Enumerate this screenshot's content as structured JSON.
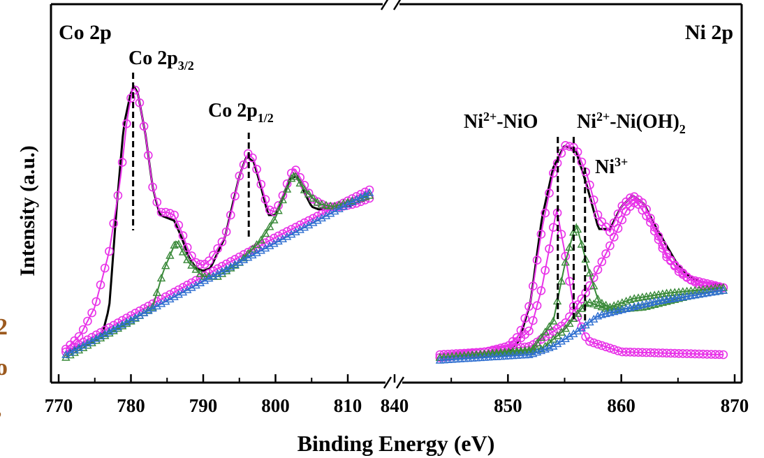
{
  "chart_data": {
    "type": "scatter",
    "title": "",
    "xlabel": "Binding Energy (eV)",
    "ylabel": "Intensity (a.u.)",
    "x_ticks_left": [
      "770",
      "780",
      "790",
      "800",
      "810"
    ],
    "x_ticks_right": [
      "840",
      "850",
      "860",
      "870"
    ],
    "panels": [
      {
        "name": "Co 2p",
        "xlim": [
          771,
          813
        ],
        "annotations": [
          {
            "text": "Co 2p",
            "sub": "3/2",
            "x": 780.3
          },
          {
            "text": "Co 2p",
            "sub": "1/2",
            "x": 796.3
          }
        ],
        "series": [
          {
            "color": "#000000",
            "points": [
              [
                771,
                0.04
              ],
              [
                774,
                0.07
              ],
              [
                776,
                0.1
              ],
              [
                777,
                0.2
              ],
              [
                778,
                0.55
              ],
              [
                779,
                0.85
              ],
              [
                780,
                0.97
              ],
              [
                780.5,
                0.99
              ],
              [
                781,
                0.96
              ],
              [
                782,
                0.82
              ],
              [
                783,
                0.63
              ],
              [
                784,
                0.53
              ],
              [
                785,
                0.52
              ],
              [
                786,
                0.51
              ],
              [
                787,
                0.45
              ],
              [
                788,
                0.38
              ],
              [
                789,
                0.34
              ],
              [
                790,
                0.33
              ],
              [
                791,
                0.34
              ],
              [
                793,
                0.45
              ],
              [
                795,
                0.67
              ],
              [
                796,
                0.74
              ],
              [
                797,
                0.72
              ],
              [
                798,
                0.63
              ],
              [
                799,
                0.53
              ],
              [
                800,
                0.53
              ],
              [
                801,
                0.59
              ],
              [
                802,
                0.66
              ],
              [
                803,
                0.67
              ],
              [
                804,
                0.61
              ],
              [
                805,
                0.56
              ],
              [
                806,
                0.55
              ],
              [
                808,
                0.56
              ],
              [
                810,
                0.56
              ],
              [
                812,
                0.58
              ],
              [
                813,
                0.59
              ]
            ]
          },
          {
            "color": "#e832e8",
            "points": [
              [
                771,
                0.05
              ],
              [
                773,
                0.1
              ],
              [
                775,
                0.2
              ],
              [
                777,
                0.4
              ],
              [
                778.5,
                0.65
              ],
              [
                779.5,
                0.88
              ],
              [
                780.3,
                0.99
              ],
              [
                781,
                0.96
              ],
              [
                782,
                0.82
              ],
              [
                783,
                0.63
              ],
              [
                784,
                0.54
              ],
              [
                785,
                0.54
              ],
              [
                786,
                0.53
              ],
              [
                787,
                0.47
              ],
              [
                788,
                0.4
              ],
              [
                789,
                0.36
              ],
              [
                790,
                0.35
              ],
              [
                791,
                0.37
              ],
              [
                793,
                0.45
              ],
              [
                794,
                0.55
              ],
              [
                795,
                0.67
              ],
              [
                796.2,
                0.75
              ],
              [
                797,
                0.73
              ],
              [
                798,
                0.64
              ],
              [
                799,
                0.55
              ],
              [
                800,
                0.54
              ],
              [
                801,
                0.6
              ],
              [
                802,
                0.67
              ],
              [
                802.6,
                0.7
              ],
              [
                803.5,
                0.66
              ],
              [
                805,
                0.59
              ],
              [
                807,
                0.56
              ],
              [
                809,
                0.56
              ],
              [
                811,
                0.57
              ],
              [
                813,
                0.59
              ]
            ]
          },
          {
            "color": "#e832e8",
            "points": [
              [
                771,
                0.04
              ],
              [
                780,
                0.17
              ],
              [
                790,
                0.31
              ],
              [
                800,
                0.45
              ],
              [
                813,
                0.62
              ]
            ]
          },
          {
            "color": "#3a8a3a",
            "points": [
              [
                771,
                0.02
              ],
              [
                780,
                0.15
              ],
              [
                783,
                0.2
              ],
              [
                784.5,
                0.33
              ],
              [
                786.3,
                0.44
              ],
              [
                788,
                0.36
              ],
              [
                790,
                0.31
              ],
              [
                792,
                0.31
              ],
              [
                795,
                0.36
              ],
              [
                798,
                0.44
              ],
              [
                800,
                0.52
              ],
              [
                802.5,
                0.68
              ],
              [
                804,
                0.62
              ],
              [
                806,
                0.57
              ],
              [
                808,
                0.56
              ],
              [
                813,
                0.6
              ]
            ]
          },
          {
            "color": "#2f6fd0",
            "points": [
              [
                771,
                0.03
              ],
              [
                813,
                0.61
              ]
            ]
          }
        ]
      },
      {
        "name": "Ni 2p",
        "xlim": [
          844,
          869
        ],
        "annotations": [
          {
            "text": "Ni",
            "sup": "2+",
            "tail": "-NiO",
            "x": 854.4
          },
          {
            "text": "Ni",
            "sup": "2+",
            "tail": "-Ni(OH)",
            "sub": "2",
            "x": 855.8
          },
          {
            "text": "Ni",
            "sup": "3+",
            "tail": "",
            "x": 856.8
          }
        ],
        "series": [
          {
            "color": "#000000",
            "points": [
              [
                844,
                0.02
              ],
              [
                848,
                0.03
              ],
              [
                850,
                0.04
              ],
              [
                851,
                0.08
              ],
              [
                852,
                0.22
              ],
              [
                853,
                0.52
              ],
              [
                854,
                0.7
              ],
              [
                855,
                0.78
              ],
              [
                856,
                0.76
              ],
              [
                857,
                0.63
              ],
              [
                858,
                0.48
              ],
              [
                859,
                0.48
              ],
              [
                860,
                0.56
              ],
              [
                861,
                0.6
              ],
              [
                862,
                0.57
              ],
              [
                863,
                0.49
              ],
              [
                864,
                0.42
              ],
              [
                865,
                0.35
              ],
              [
                866,
                0.31
              ],
              [
                867,
                0.29
              ],
              [
                869,
                0.28
              ]
            ]
          },
          {
            "color": "#e832e8",
            "points": [
              [
                844,
                0.03
              ],
              [
                848,
                0.04
              ],
              [
                850,
                0.06
              ],
              [
                851,
                0.1
              ],
              [
                852,
                0.22
              ],
              [
                853,
                0.48
              ],
              [
                854,
                0.68
              ],
              [
                855,
                0.78
              ],
              [
                856,
                0.77
              ],
              [
                857,
                0.67
              ],
              [
                858,
                0.52
              ],
              [
                859,
                0.47
              ],
              [
                860,
                0.56
              ],
              [
                861,
                0.6
              ],
              [
                862,
                0.57
              ],
              [
                863,
                0.48
              ],
              [
                864,
                0.39
              ],
              [
                865,
                0.33
              ],
              [
                866,
                0.3
              ],
              [
                867,
                0.28
              ],
              [
                869,
                0.27
              ]
            ]
          },
          {
            "color": "#e832e8",
            "points": [
              [
                844,
                0.02
              ],
              [
                850,
                0.05
              ],
              [
                852,
                0.12
              ],
              [
                853,
                0.27
              ],
              [
                853.6,
                0.4
              ],
              [
                854.3,
                0.55
              ],
              [
                855,
                0.4
              ],
              [
                855.8,
                0.2
              ],
              [
                857,
                0.08
              ],
              [
                860,
                0.04
              ],
              [
                869,
                0.03
              ]
            ]
          },
          {
            "color": "#e832e8",
            "points": [
              [
                844,
                0.02
              ],
              [
                852,
                0.06
              ],
              [
                855,
                0.14
              ],
              [
                857,
                0.26
              ],
              [
                859,
                0.42
              ],
              [
                860.5,
                0.55
              ],
              [
                861.3,
                0.58
              ],
              [
                862.5,
                0.51
              ],
              [
                864,
                0.38
              ],
              [
                866,
                0.3
              ],
              [
                869,
                0.27
              ]
            ]
          },
          {
            "color": "#3a8a3a",
            "points": [
              [
                844,
                0.02
              ],
              [
                852,
                0.04
              ],
              [
                854,
                0.15
              ],
              [
                855,
                0.35
              ],
              [
                856,
                0.5
              ],
              [
                857,
                0.35
              ],
              [
                858,
                0.22
              ],
              [
                859,
                0.2
              ],
              [
                861,
                0.23
              ],
              [
                864,
                0.25
              ],
              [
                869,
                0.27
              ]
            ]
          },
          {
            "color": "#3a8a3a",
            "points": [
              [
                844,
                0.02
              ],
              [
                853,
                0.05
              ],
              [
                855,
                0.12
              ],
              [
                857,
                0.22
              ],
              [
                859,
                0.19
              ],
              [
                862,
                0.2
              ],
              [
                866,
                0.24
              ],
              [
                869,
                0.26
              ]
            ]
          },
          {
            "color": "#2f6fd0",
            "points": [
              [
                844,
                0.01
              ],
              [
                852,
                0.03
              ],
              [
                854,
                0.06
              ],
              [
                856,
                0.11
              ],
              [
                858,
                0.17
              ],
              [
                860,
                0.19
              ],
              [
                863,
                0.22
              ],
              [
                866,
                0.24
              ],
              [
                869,
                0.26
              ]
            ]
          }
        ]
      }
    ]
  },
  "edge_fragment": [
    "2",
    "o",
    ","
  ]
}
